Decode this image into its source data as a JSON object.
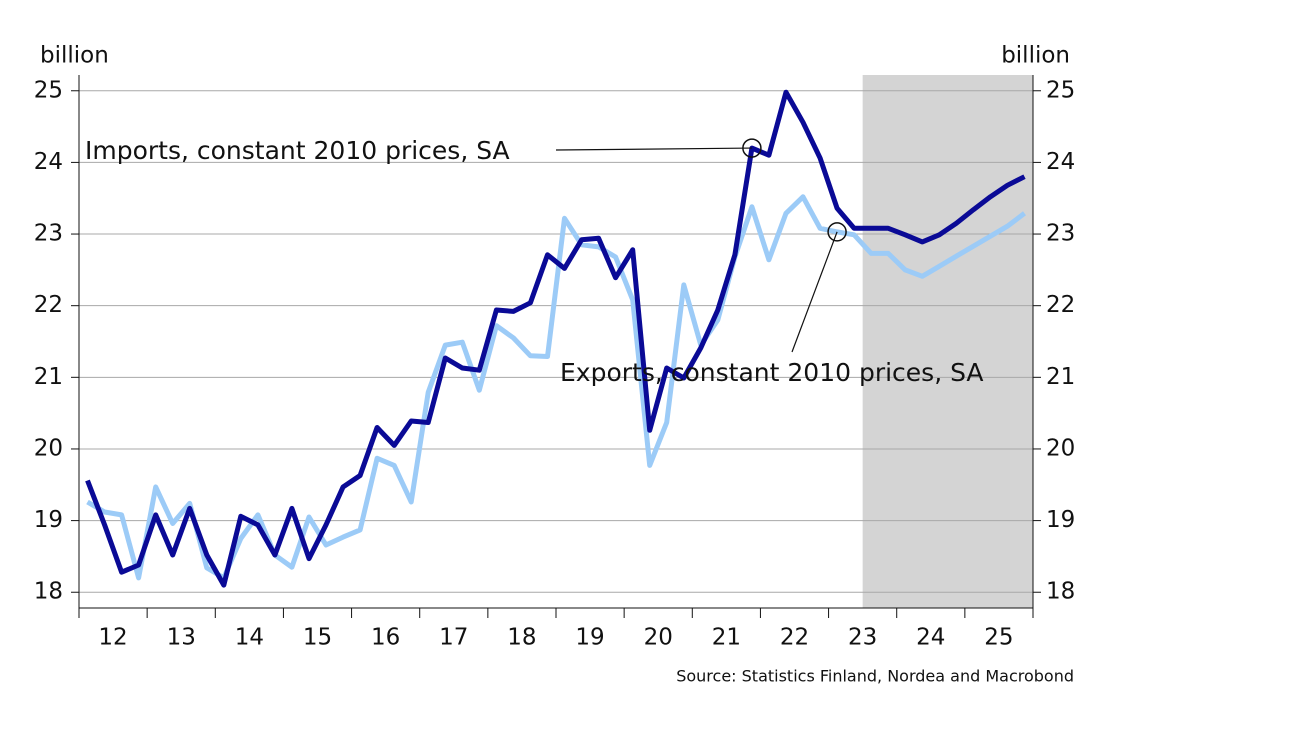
{
  "chart_data": {
    "type": "line",
    "y_label": "billion",
    "y2_label": "billion",
    "source": "Source: Statistics Finland, Nordea and Macrobond",
    "annotations": [
      "Imports, constant 2010 prices, SA",
      "Exports, constant 2010 prices, SA"
    ],
    "x": [
      12.125,
      12.375,
      12.625,
      12.875,
      13.125,
      13.375,
      13.625,
      13.875,
      14.125,
      14.375,
      14.625,
      14.875,
      15.125,
      15.375,
      15.625,
      15.875,
      16.125,
      16.375,
      16.625,
      16.875,
      17.125,
      17.375,
      17.625,
      17.875,
      18.125,
      18.375,
      18.625,
      18.875,
      19.125,
      19.375,
      19.625,
      19.875,
      20.125,
      20.375,
      20.625,
      20.875,
      21.125,
      21.375,
      21.625,
      21.875,
      22.125,
      22.375,
      22.625,
      22.875,
      23.125,
      23.375,
      23.625,
      23.875,
      24.125,
      24.375,
      24.625,
      24.875,
      25.125,
      25.375,
      25.625,
      25.875
    ],
    "series": [
      {
        "name": "Imports, constant 2010 prices, SA",
        "color": "#0a0a96",
        "values": [
          19.56,
          18.94,
          18.28,
          18.38,
          19.08,
          18.52,
          19.17,
          18.52,
          18.1,
          19.06,
          18.94,
          18.52,
          19.17,
          18.47,
          18.94,
          19.47,
          19.63,
          20.3,
          20.05,
          20.39,
          20.37,
          21.27,
          21.13,
          21.1,
          21.94,
          21.92,
          22.04,
          22.71,
          22.52,
          22.92,
          22.94,
          22.39,
          22.78,
          20.26,
          21.13,
          20.99,
          21.41,
          21.94,
          22.71,
          24.2,
          24.1,
          24.98,
          24.56,
          24.06,
          23.36,
          23.08,
          23.08,
          23.08,
          22.99,
          22.89,
          22.99,
          23.15,
          23.34,
          23.52,
          23.68,
          23.8
        ]
      },
      {
        "name": "Exports, constant 2010 prices, SA",
        "color": "#9ccbf7",
        "values": [
          19.26,
          19.12,
          19.08,
          18.2,
          19.47,
          18.96,
          19.24,
          18.34,
          18.2,
          18.75,
          19.08,
          18.52,
          18.35,
          19.05,
          18.66,
          18.77,
          18.87,
          19.87,
          19.77,
          19.26,
          20.79,
          21.45,
          21.49,
          20.82,
          21.72,
          21.55,
          21.3,
          21.29,
          23.22,
          22.85,
          22.82,
          22.68,
          22.08,
          19.77,
          20.37,
          22.29,
          21.45,
          21.8,
          22.68,
          23.38,
          22.64,
          23.29,
          23.52,
          23.08,
          23.03,
          22.99,
          22.73,
          22.73,
          22.5,
          22.41,
          22.55,
          22.69,
          22.83,
          22.97,
          23.11,
          23.29
        ]
      }
    ],
    "xlim": [
      12,
      26
    ],
    "xticks": [
      {
        "value": 12.5,
        "label": "12"
      },
      {
        "value": 13.5,
        "label": "13"
      },
      {
        "value": 14.5,
        "label": "14"
      },
      {
        "value": 15.5,
        "label": "15"
      },
      {
        "value": 16.5,
        "label": "16"
      },
      {
        "value": 17.5,
        "label": "17"
      },
      {
        "value": 18.5,
        "label": "18"
      },
      {
        "value": 19.5,
        "label": "19"
      },
      {
        "value": 20.5,
        "label": "20"
      },
      {
        "value": 21.5,
        "label": "21"
      },
      {
        "value": 22.5,
        "label": "22"
      },
      {
        "value": 23.5,
        "label": "23"
      },
      {
        "value": 24.5,
        "label": "24"
      },
      {
        "value": 25.5,
        "label": "25"
      }
    ],
    "xminor": [
      12,
      13,
      14,
      15,
      16,
      17,
      18,
      19,
      20,
      21,
      22,
      23,
      24,
      25,
      26
    ],
    "ylim": [
      17.78,
      25.22
    ],
    "yticks": [
      18,
      19,
      20,
      21,
      22,
      23,
      24,
      25
    ],
    "y2lim": [
      17.78,
      25.22
    ],
    "y2ticks": [
      18,
      19,
      20,
      21,
      22,
      23,
      24,
      25
    ],
    "forecast_start": 23.5,
    "forecast_color": "#d4d4d4",
    "grid": true
  }
}
